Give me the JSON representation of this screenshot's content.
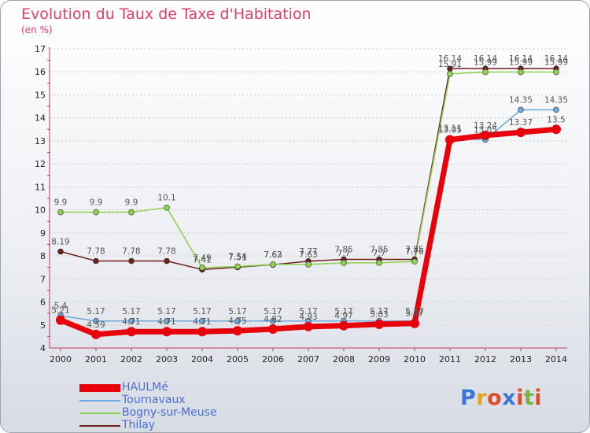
{
  "header": {
    "title": "Evolution du Taux de Taxe d'Habitation",
    "unit": "(en %)"
  },
  "logo": {
    "text": "Proxiti",
    "colors": [
      "#3b78d8",
      "#e8a21a",
      "#e04a2a",
      "#3b78d8",
      "#e04a2a",
      "#7ab03c",
      "#e04a2a"
    ]
  },
  "chart_data": {
    "type": "line",
    "title": "Evolution du Taux de Taxe d'Habitation",
    "ylabel": "(en %)",
    "xlabel": "",
    "x": [
      "2000",
      "2001",
      "2002",
      "2003",
      "2004",
      "2005",
      "2006",
      "2007",
      "2008",
      "2009",
      "2010",
      "2011",
      "2012",
      "2013",
      "2014"
    ],
    "ylim": [
      4,
      17
    ],
    "yticks": [
      4,
      5,
      6,
      7,
      8,
      9,
      10,
      11,
      12,
      13,
      14,
      15,
      16,
      17
    ],
    "grid": true,
    "legend_position": "bottom-left",
    "series": [
      {
        "name": "HAULMé",
        "color": "#e8000b",
        "width": 7,
        "marker": 6,
        "values": [
          5.21,
          4.59,
          4.71,
          4.71,
          4.71,
          4.75,
          4.82,
          4.93,
          4.97,
          5.03,
          5.07,
          13.05,
          13.24,
          13.37,
          13.5
        ],
        "labels": [
          "5.21",
          "4.59",
          "4.71",
          "4.71",
          "4.71",
          "4.75",
          "4.82",
          "4.93",
          "4.97",
          "5.03",
          "5.07",
          "13.05",
          "13.24",
          "13.37",
          "13.5"
        ]
      },
      {
        "name": "Tournavaux",
        "color": "#6fa8dc",
        "width": 1.5,
        "marker": 3.5,
        "values": [
          5.4,
          5.17,
          5.17,
          5.17,
          5.17,
          5.17,
          5.17,
          5.17,
          5.17,
          5.17,
          5.17,
          13.11,
          13.05,
          14.35,
          14.35
        ],
        "labels": [
          "5.4",
          "5.17",
          "5.17",
          "5.17",
          "5.17",
          "5.17",
          "5.17",
          "5.17",
          "5.17",
          "5.17",
          "5.17",
          "13.11",
          "13.05",
          "14.35",
          "14.35"
        ]
      },
      {
        "name": "Bogny-sur-Meuse",
        "color": "#8fd04f",
        "width": 1.5,
        "marker": 3.5,
        "values": [
          9.9,
          9.9,
          9.9,
          10.1,
          7.49,
          7.54,
          7.63,
          7.63,
          7.7,
          7.7,
          7.76,
          15.91,
          15.99,
          15.99,
          15.99
        ],
        "labels": [
          "9.9",
          "9.9",
          "9.9",
          "10.1",
          "7.49",
          "7.54",
          "7.63",
          "7.63",
          "7.7",
          "7.7",
          "7.76",
          "15.91",
          "15.99",
          "15.99",
          "15.99"
        ]
      },
      {
        "name": "Thilay",
        "color": "#6e1f1f",
        "width": 1.5,
        "marker": 3.5,
        "values": [
          8.19,
          7.78,
          7.78,
          7.78,
          7.41,
          7.51,
          7.62,
          7.77,
          7.85,
          7.85,
          7.85,
          16.14,
          16.14,
          16.14,
          16.14
        ],
        "labels": [
          "8.19",
          "7.78",
          "7.78",
          "7.78",
          "7.41",
          "7.51",
          "7.62",
          "7.77",
          "7.85",
          "7.85",
          "7.85",
          "16.14",
          "16.14",
          "16.14",
          "16.14"
        ]
      }
    ]
  }
}
